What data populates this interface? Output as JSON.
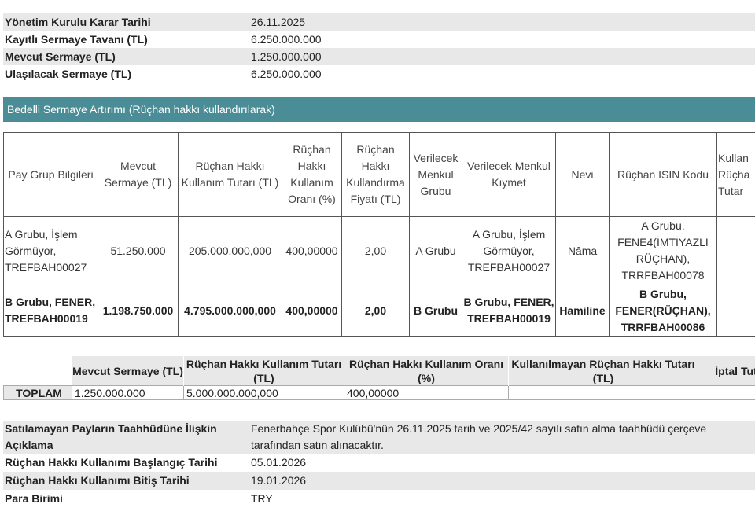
{
  "top_info": [
    {
      "label": "Yönetim Kurulu Karar Tarihi",
      "value": "26.11.2025"
    },
    {
      "label": "Kayıtlı Sermaye Tavanı (TL)",
      "value": "6.250.000.000"
    },
    {
      "label": "Mevcut Sermaye (TL)",
      "value": "1.250.000.000"
    },
    {
      "label": "Ulaşılacak Sermaye (TL)",
      "value": "6.250.000.000"
    }
  ],
  "section_title": "Bedelli Sermaye Artırımı (Rüçhan hakkı kullandırılarak)",
  "grid": {
    "headers": [
      "Pay Grup Bilgileri",
      "Mevcut Sermaye (TL)",
      "Rüçhan Hakkı Kullanım Tutarı (TL)",
      "Rüçhan Hakkı Kullanım Oranı (%)",
      "Rüçhan Hakkı Kullandırma Fiyatı (TL)",
      "Verilecek Menkul Grubu",
      "Verilecek Menkul Kıymet",
      "Nevi",
      "Rüçhan ISIN Kodu",
      "Kullan Rüçha Tutar"
    ],
    "rows": [
      [
        "A Grubu, İşlem Görmüyor, TREFBAH00027",
        "51.250.000",
        "205.000.000,000",
        "400,00000",
        "2,00",
        "A Grubu",
        "A Grubu, İşlem Görmüyor, TREFBAH00027",
        "Nâma",
        "A Grubu, FENE4(İMTİYAZLI RÜÇHAN), TRRFBAH00078",
        ""
      ],
      [
        "B Grubu, FENER, TREFBAH00019",
        "1.198.750.000",
        "4.795.000.000,000",
        "400,00000",
        "2,00",
        "B Grubu",
        "B Grubu, FENER, TREFBAH00019",
        "Hamiline",
        "B Grubu, FENER(RÜÇHAN), TRRFBAH00086",
        ""
      ]
    ]
  },
  "totals": {
    "headers": [
      "",
      "Mevcut Sermaye (TL)",
      "Rüçhan Hakkı Kullanım Tutarı (TL)",
      "Rüçhan Hakkı Kullanım Oranı (%)",
      "Kullanılmayan Rüçhan Hakkı Tutarı (TL)",
      "İptal Tut"
    ],
    "label": "TOPLAM",
    "values": [
      "1.250.000.000",
      "5.000.000.000,000",
      "400,00000",
      "",
      ""
    ]
  },
  "bottom_info": [
    {
      "label": "Satılamayan Payların Taahhüdüne İlişkin Açıklama",
      "value": "Fenerbahçe Spor Kulübü'nün 26.11.2025 tarih ve 2025/42 sayılı satın alma taahhüdü çerçeve tarafından satın alınacaktır."
    },
    {
      "label": "Rüçhan Hakkı Kullanımı Başlangıç Tarihi",
      "value": "05.01.2026"
    },
    {
      "label": "Rüçhan Hakkı Kullanımı Bitiş Tarihi",
      "value": "19.01.2026"
    },
    {
      "label": "Para Birimi",
      "value": "TRY"
    }
  ]
}
